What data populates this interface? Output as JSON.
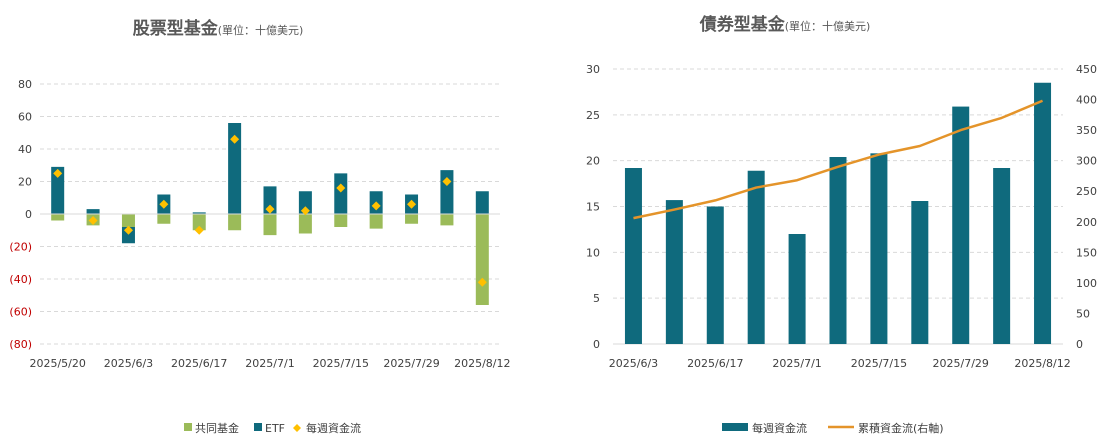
{
  "chart_data": [
    {
      "type": "bar",
      "title": "股票型基金",
      "subtitle": "(單位：十億美元)",
      "categories": [
        "2025/5/20",
        "2025/5/27",
        "2025/6/3",
        "2025/6/10",
        "2025/6/17",
        "2025/6/24",
        "2025/7/1",
        "2025/7/8",
        "2025/7/15",
        "2025/7/22",
        "2025/7/29",
        "2025/8/5",
        "2025/8/12"
      ],
      "x_tick_labels": [
        "2025/5/20",
        "2025/6/3",
        "2025/6/17",
        "2025/7/1",
        "2025/7/15",
        "2025/7/29",
        "2025/8/12"
      ],
      "stacked": true,
      "series": [
        {
          "name": "共同基金",
          "type": "bar",
          "color": "#9bbb59",
          "values": [
            -4,
            -7,
            -8,
            -6,
            -10,
            -10,
            -13,
            -12,
            -8,
            -9,
            -6,
            -7,
            -56
          ]
        },
        {
          "name": "ETF",
          "type": "bar",
          "color": "#0f6a7d",
          "values": [
            29,
            3,
            -10,
            12,
            1,
            56,
            17,
            14,
            25,
            14,
            12,
            27,
            14
          ]
        },
        {
          "name": "每週資金流",
          "type": "scatter",
          "marker": "diamond",
          "color": "#ffc000",
          "values": [
            25,
            -4,
            -10,
            6,
            -10,
            46,
            3,
            2,
            16,
            5,
            6,
            20,
            -42
          ]
        }
      ],
      "ylim": [
        -80,
        80
      ],
      "yticks": [
        "80",
        "60",
        "40",
        "20",
        "0",
        "(20)",
        "(40)",
        "(60)",
        "(80)"
      ],
      "y_negative_color": "#c00000",
      "grid": true,
      "legend": "bottom"
    },
    {
      "type": "bar",
      "title": "債券型基金",
      "subtitle": "(單位：十億美元)",
      "categories": [
        "2025/6/3",
        "2025/6/10",
        "2025/6/17",
        "2025/6/24",
        "2025/7/1",
        "2025/7/8",
        "2025/7/15",
        "2025/7/22",
        "2025/7/29",
        "2025/8/5",
        "2025/8/12"
      ],
      "x_tick_labels": [
        "2025/6/3",
        "2025/6/17",
        "2025/7/1",
        "2025/7/15",
        "2025/7/29",
        "2025/8/12"
      ],
      "series": [
        {
          "name": "每週資金流",
          "type": "bar",
          "axis": "left",
          "color": "#0f6a7d",
          "values": [
            19.2,
            15.7,
            15.0,
            18.9,
            12.0,
            20.4,
            20.8,
            15.6,
            25.9,
            19.2,
            28.5
          ]
        },
        {
          "name": "累積資金流(右軸)",
          "type": "line",
          "axis": "right",
          "color": "#e4942a",
          "values": [
            206,
            220,
            235,
            256,
            268,
            290,
            310,
            324,
            350,
            370,
            398
          ]
        }
      ],
      "ylim": [
        0,
        30
      ],
      "yticks": [
        "30",
        "25",
        "20",
        "15",
        "10",
        "5",
        "0"
      ],
      "y2lim": [
        0,
        450
      ],
      "y2ticks": [
        "450",
        "400",
        "350",
        "300",
        "250",
        "200",
        "150",
        "100",
        "50",
        "0"
      ],
      "grid": true,
      "legend": "bottom"
    }
  ]
}
